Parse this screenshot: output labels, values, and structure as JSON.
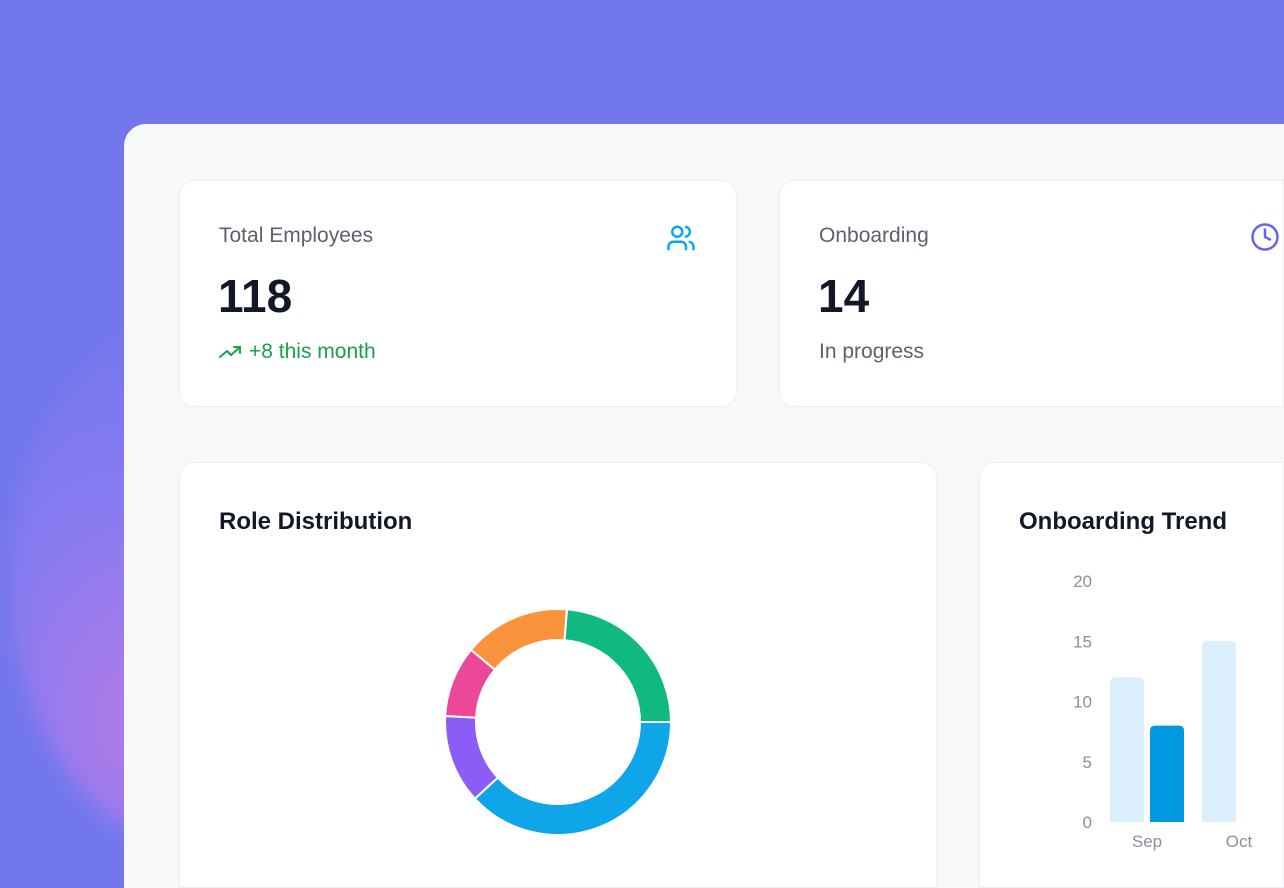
{
  "stats": [
    {
      "label": "Total Employees",
      "value": "118",
      "sub": "+8 this month",
      "icon": "users-icon",
      "trend_icon": "trending-up-icon",
      "color": "#0ea5e9",
      "sub_color": "#16a34a"
    },
    {
      "label": "Onboarding",
      "value": "14",
      "sub": "In progress",
      "icon": "clock-icon",
      "color": "#6366f1"
    }
  ],
  "charts": {
    "role_title": "Role Distribution",
    "trend_title": "Onboarding Trend"
  },
  "chart_data": [
    {
      "type": "pie",
      "title": "Role Distribution",
      "donut": true,
      "values": [
        45,
        15,
        12,
        18,
        28
      ],
      "colors": [
        "#0ea5e9",
        "#8b5cf6",
        "#ec4899",
        "#fb923c",
        "#10b981"
      ]
    },
    {
      "type": "bar",
      "title": "Onboarding Trend",
      "categories": [
        "Sep",
        "Oct"
      ],
      "series": [
        {
          "values": [
            12,
            15
          ],
          "color": "#dbeefc"
        },
        {
          "values": [
            8,
            null
          ],
          "color": "#0098e0"
        }
      ],
      "ylim": [
        0,
        20
      ],
      "yticks": [
        0,
        5,
        10,
        15,
        20
      ]
    }
  ]
}
